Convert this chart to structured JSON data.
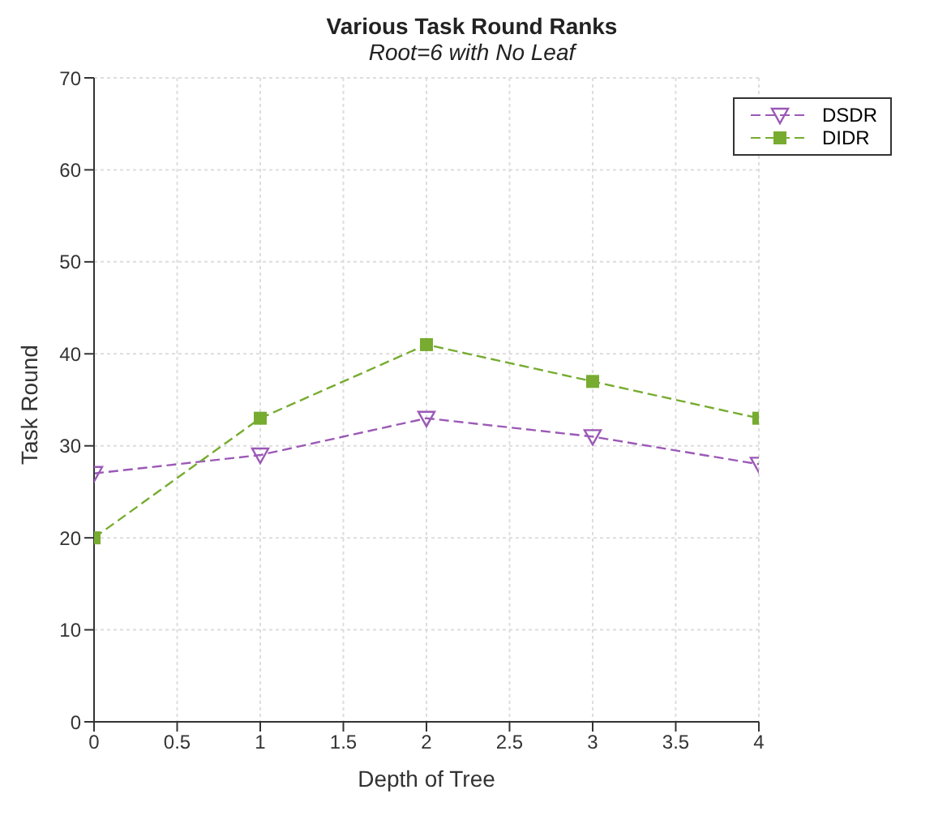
{
  "chart_data": {
    "type": "line",
    "title": "Various Task Round Ranks",
    "subtitle": "Root=6 with No Leaf",
    "xlabel": "Depth of Tree",
    "ylabel": "Task Round",
    "x": [
      0,
      1,
      2,
      3,
      4
    ],
    "series": [
      {
        "name": "DSDR",
        "color": "#9b59b6",
        "values": [
          27,
          29,
          33,
          31,
          28
        ],
        "marker": "triangle"
      },
      {
        "name": "DIDR",
        "color": "#77ac30",
        "values": [
          20,
          33,
          41,
          37,
          33
        ],
        "marker": "square"
      }
    ],
    "xlim": [
      0,
      4
    ],
    "xticks": [
      0,
      0.5,
      1,
      1.5,
      2,
      2.5,
      3,
      3.5,
      4
    ],
    "ylim": [
      0,
      70
    ],
    "yticks": [
      0,
      10,
      20,
      30,
      40,
      50,
      60,
      70
    ],
    "grid": true,
    "legend": "top right",
    "line_style": "dashed"
  }
}
